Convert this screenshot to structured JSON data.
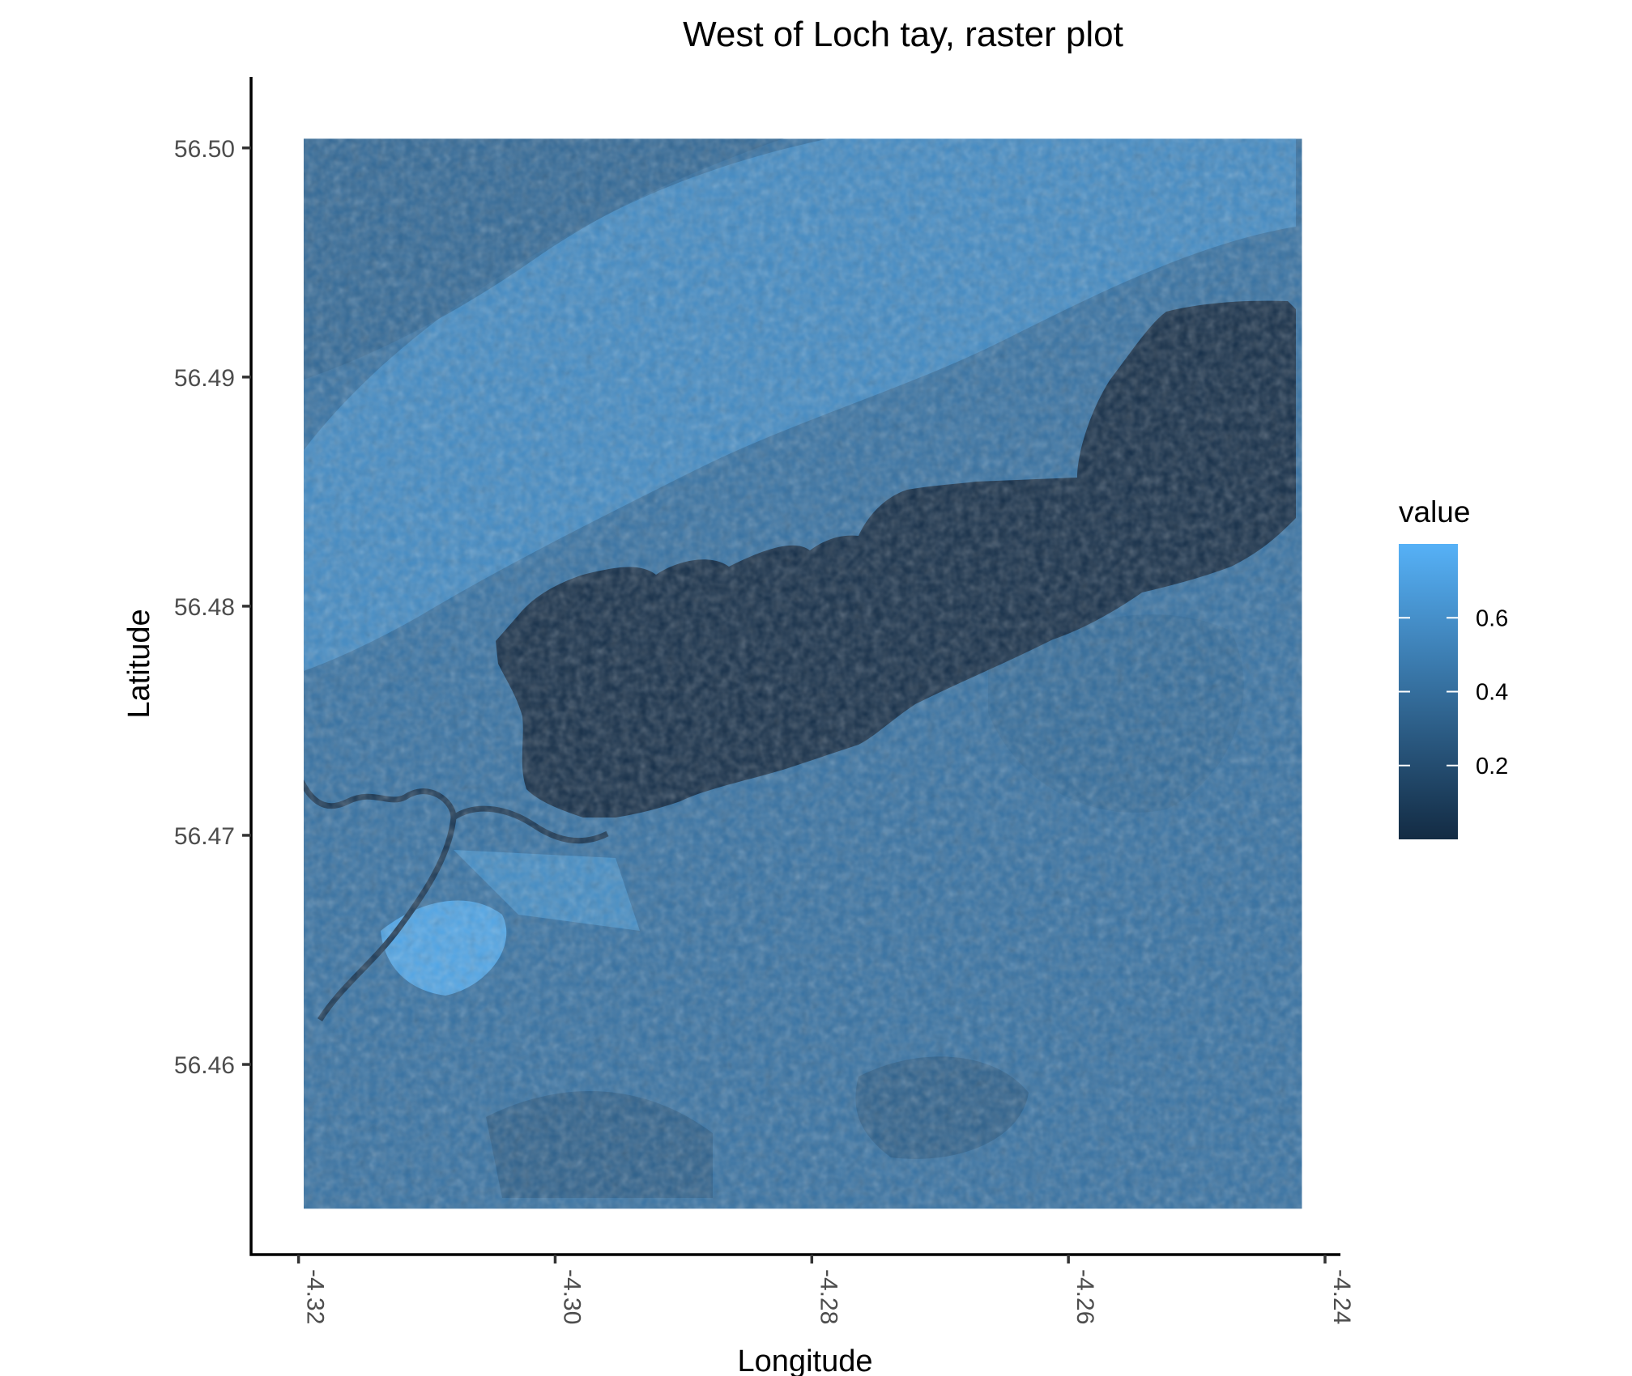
{
  "chart_data": {
    "type": "heatmap",
    "title": "West of Loch tay, raster plot",
    "xlabel": "Longitude",
    "ylabel": "Latitude",
    "xlim": [
      -4.3237,
      -4.2388
    ],
    "ylim": [
      56.4517,
      56.5031
    ],
    "raster_extent": {
      "x": [
        -4.3196,
        -4.2418
      ],
      "y": [
        56.4537,
        56.5004
      ]
    },
    "x_ticks": [
      -4.32,
      -4.3,
      -4.28,
      -4.26,
      -4.24
    ],
    "x_tick_labels": [
      "-4.32",
      "-4.30",
      "-4.28",
      "-4.26",
      "-4.24"
    ],
    "y_ticks": [
      56.46,
      56.47,
      56.48,
      56.49,
      56.5
    ],
    "y_tick_labels": [
      "56.46",
      "56.47",
      "56.48",
      "56.49",
      "56.50"
    ],
    "color_scale": {
      "low": "#132b43",
      "high": "#56b1f7",
      "range": [
        0.0,
        0.8
      ]
    },
    "legend": {
      "title": "value",
      "placement": "right",
      "breaks": [
        0.6,
        0.4,
        0.2
      ],
      "labels": [
        "0.6",
        "0.4",
        "0.2"
      ]
    },
    "regions": {
      "background_value": 0.42,
      "loch_value": 0.02,
      "bright_band_value": 0.62,
      "bright_field_value": 0.72,
      "dark_field_value": 0.3,
      "river_value": 0.08
    },
    "grid": false
  }
}
